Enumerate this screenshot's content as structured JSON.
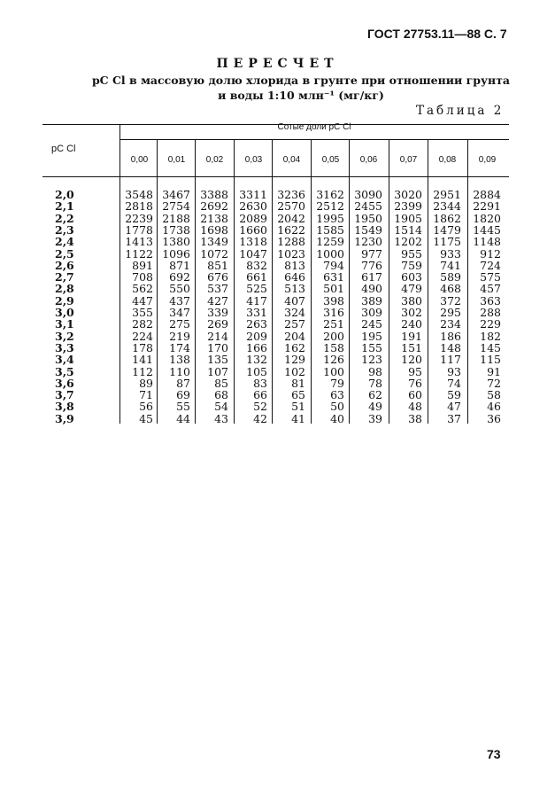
{
  "header": {
    "gost": "ГОСТ 27753.11—88 С. 7"
  },
  "title": "ПЕРЕСЧЕТ",
  "subtitle_line1": "pC Cl в массовую долю хлорида в грунте при отношении грунта",
  "subtitle_line2": "и воды 1:10 млн⁻¹ (мг/кг)",
  "table_label": "Таблица 2",
  "table": {
    "row_header": "pC Cl",
    "group_header": "Сотые доли pC Cl",
    "columns": [
      "0,00",
      "0,01",
      "0,02",
      "0,03",
      "0,04",
      "0,05",
      "0,06",
      "0,07",
      "0,08",
      "0,09"
    ],
    "rows": [
      {
        "label": "2,0",
        "values": [
          "3548",
          "3467",
          "3388",
          "3311",
          "3236",
          "3162",
          "3090",
          "3020",
          "2951",
          "2884"
        ]
      },
      {
        "label": "2,1",
        "values": [
          "2818",
          "2754",
          "2692",
          "2630",
          "2570",
          "2512",
          "2455",
          "2399",
          "2344",
          "2291"
        ]
      },
      {
        "label": "2,2",
        "values": [
          "2239",
          "2188",
          "2138",
          "2089",
          "2042",
          "1995",
          "1950",
          "1905",
          "1862",
          "1820"
        ]
      },
      {
        "label": "2,3",
        "values": [
          "1778",
          "1738",
          "1698",
          "1660",
          "1622",
          "1585",
          "1549",
          "1514",
          "1479",
          "1445"
        ]
      },
      {
        "label": "2,4",
        "values": [
          "1413",
          "1380",
          "1349",
          "1318",
          "1288",
          "1259",
          "1230",
          "1202",
          "1175",
          "1148"
        ]
      },
      {
        "label": "2,5",
        "values": [
          "1122",
          "1096",
          "1072",
          "1047",
          "1023",
          "1000",
          "977",
          "955",
          "933",
          "912"
        ]
      },
      {
        "label": "2,6",
        "values": [
          "891",
          "871",
          "851",
          "832",
          "813",
          "794",
          "776",
          "759",
          "741",
          "724"
        ]
      },
      {
        "label": "2,7",
        "values": [
          "708",
          "692",
          "676",
          "661",
          "646",
          "631",
          "617",
          "603",
          "589",
          "575"
        ]
      },
      {
        "label": "2,8",
        "values": [
          "562",
          "550",
          "537",
          "525",
          "513",
          "501",
          "490",
          "479",
          "468",
          "457"
        ]
      },
      {
        "label": "2,9",
        "values": [
          "447",
          "437",
          "427",
          "417",
          "407",
          "398",
          "389",
          "380",
          "372",
          "363"
        ]
      },
      {
        "label": "3,0",
        "values": [
          "355",
          "347",
          "339",
          "331",
          "324",
          "316",
          "309",
          "302",
          "295",
          "288"
        ]
      },
      {
        "label": "3,1",
        "values": [
          "282",
          "275",
          "269",
          "263",
          "257",
          "251",
          "245",
          "240",
          "234",
          "229"
        ]
      },
      {
        "label": "3,2",
        "values": [
          "224",
          "219",
          "214",
          "209",
          "204",
          "200",
          "195",
          "191",
          "186",
          "182"
        ]
      },
      {
        "label": "3,3",
        "values": [
          "178",
          "174",
          "170",
          "166",
          "162",
          "158",
          "155",
          "151",
          "148",
          "145"
        ]
      },
      {
        "label": "3,4",
        "values": [
          "141",
          "138",
          "135",
          "132",
          "129",
          "126",
          "123",
          "120",
          "117",
          "115"
        ]
      },
      {
        "label": "3,5",
        "values": [
          "112",
          "110",
          "107",
          "105",
          "102",
          "100",
          "98",
          "95",
          "93",
          "91"
        ]
      },
      {
        "label": "3,6",
        "values": [
          "89",
          "87",
          "85",
          "83",
          "81",
          "79",
          "78",
          "76",
          "74",
          "72"
        ]
      },
      {
        "label": "3,7",
        "values": [
          "71",
          "69",
          "68",
          "66",
          "65",
          "63",
          "62",
          "60",
          "59",
          "58"
        ]
      },
      {
        "label": "3,8",
        "values": [
          "56",
          "55",
          "54",
          "52",
          "51",
          "50",
          "49",
          "48",
          "47",
          "46"
        ]
      },
      {
        "label": "3,9",
        "values": [
          "45",
          "44",
          "43",
          "42",
          "41",
          "40",
          "39",
          "38",
          "37",
          "36"
        ]
      }
    ]
  },
  "page_number": "73"
}
